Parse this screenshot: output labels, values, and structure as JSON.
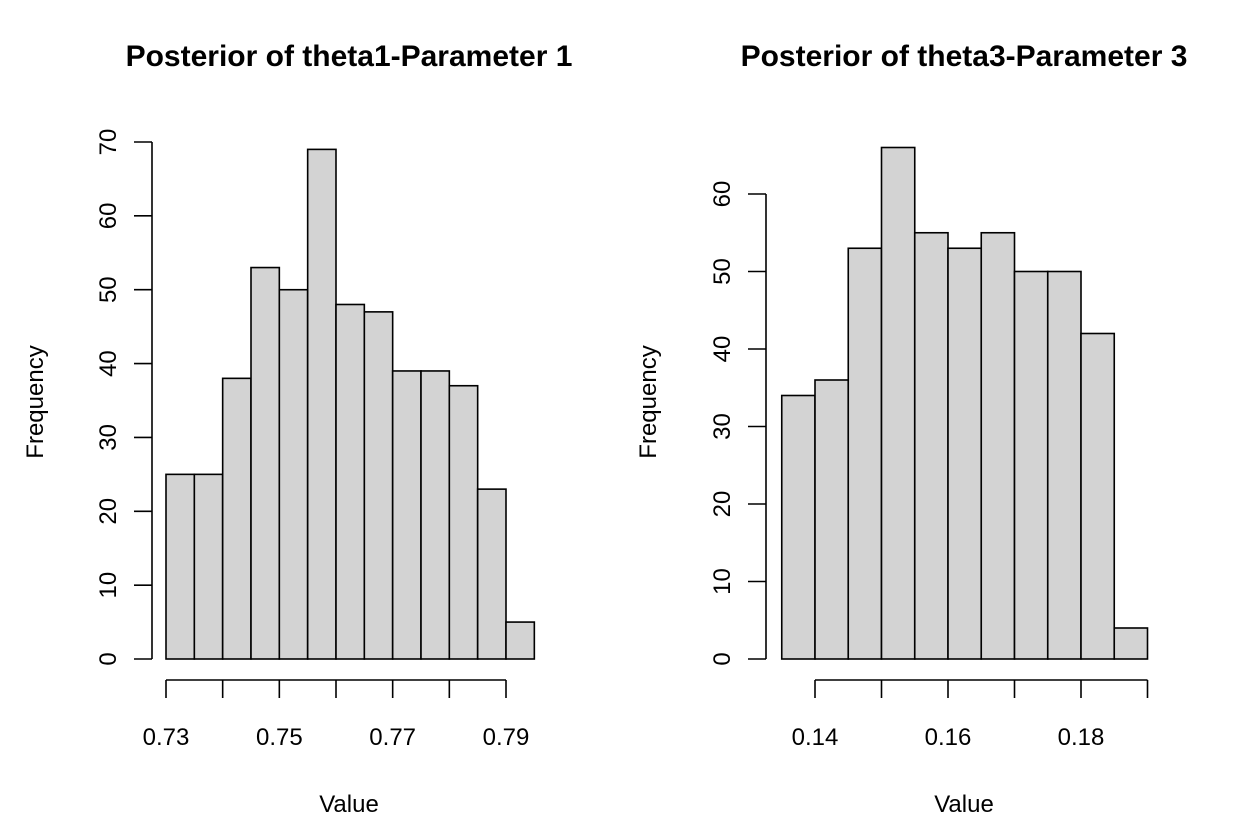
{
  "chart_data": [
    {
      "type": "bar",
      "title": "Posterior of theta1-Parameter 1",
      "xlabel": "Value",
      "ylabel": "Frequency",
      "bin_edges": [
        0.73,
        0.735,
        0.74,
        0.745,
        0.75,
        0.755,
        0.76,
        0.765,
        0.77,
        0.775,
        0.78,
        0.785,
        0.79,
        0.795
      ],
      "values": [
        25,
        25,
        38,
        53,
        50,
        69,
        48,
        47,
        39,
        39,
        37,
        23,
        5
      ],
      "xlim": [
        0.73,
        0.795
      ],
      "ylim": [
        0,
        70
      ],
      "x_ticks": [
        0.73,
        0.74,
        0.75,
        0.76,
        0.77,
        0.78,
        0.79
      ],
      "x_tick_labels": [
        "0.73",
        "",
        "0.75",
        "",
        "0.77",
        "",
        "0.79"
      ],
      "y_ticks": [
        0,
        10,
        20,
        30,
        40,
        50,
        60,
        70
      ],
      "y_tick_labels": [
        "0",
        "10",
        "20",
        "30",
        "40",
        "50",
        "60",
        "70"
      ],
      "bar_color": "#d3d3d3",
      "edge_color": "#000000",
      "grid": false
    },
    {
      "type": "bar",
      "title": "Posterior of theta3-Parameter 3",
      "xlabel": "Value",
      "ylabel": "Frequency",
      "bin_edges": [
        0.135,
        0.14,
        0.145,
        0.15,
        0.155,
        0.16,
        0.165,
        0.17,
        0.175,
        0.18,
        0.185,
        0.19
      ],
      "values": [
        34,
        36,
        53,
        66,
        55,
        53,
        55,
        50,
        50,
        42,
        4
      ],
      "xlim": [
        0.135,
        0.19
      ],
      "ylim": [
        0,
        66
      ],
      "x_ticks": [
        0.14,
        0.15,
        0.16,
        0.17,
        0.18,
        0.19
      ],
      "x_tick_labels": [
        "0.14",
        "",
        "0.16",
        "",
        "0.18",
        ""
      ],
      "y_ticks": [
        0,
        10,
        20,
        30,
        40,
        50,
        60
      ],
      "y_tick_labels": [
        "0",
        "10",
        "20",
        "30",
        "40",
        "50",
        "60"
      ],
      "bar_color": "#d3d3d3",
      "edge_color": "#000000",
      "grid": false
    }
  ]
}
